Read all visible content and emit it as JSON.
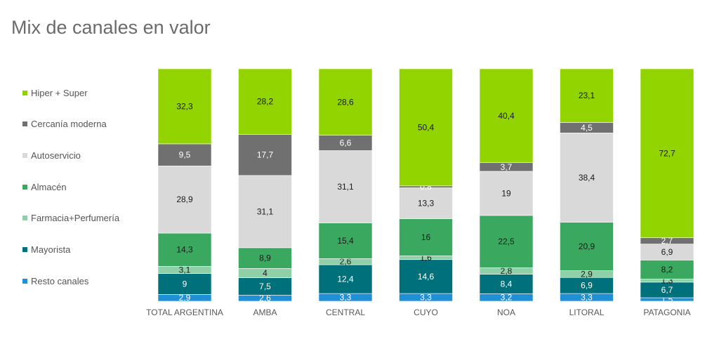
{
  "page": {
    "title": "Mix de canales en valor"
  },
  "chart_data": {
    "type": "bar",
    "stacked": true,
    "title": "Mix de canales en valor",
    "categories": [
      "TOTAL ARGENTINA",
      "AMBA",
      "CENTRAL",
      "CUYO",
      "NOA",
      "LITORAL",
      "PATAGONIA"
    ],
    "series": [
      {
        "name": "Resto canales",
        "color": "#1f8fd6",
        "values": [
          2.9,
          2.6,
          3.3,
          3.3,
          3.2,
          3.3,
          1.5
        ]
      },
      {
        "name": "Mayorista",
        "color": "#00707a",
        "values": [
          9,
          7.5,
          12.4,
          14.6,
          8.4,
          6.9,
          6.7
        ]
      },
      {
        "name": "Farmacia+Perfumería",
        "color": "#8fd0a8",
        "values": [
          3.1,
          4,
          2.6,
          1.6,
          2.8,
          2.9,
          1.3
        ]
      },
      {
        "name": "Almacén",
        "color": "#3aa85f",
        "values": [
          14.3,
          8.9,
          15.4,
          16,
          22.5,
          20.9,
          8.2
        ]
      },
      {
        "name": "Autoservicio",
        "color": "#d9d9d9",
        "values": [
          28.9,
          31.1,
          31.1,
          13.3,
          19,
          38.4,
          6.9
        ]
      },
      {
        "name": "Cercanía moderna",
        "color": "#707070",
        "values": [
          9.5,
          17.7,
          6.6,
          0.8,
          3.7,
          4.5,
          2.7
        ]
      },
      {
        "name": "Hiper + Super",
        "color": "#92d400",
        "values": [
          32.3,
          28.2,
          28.6,
          50.4,
          40.4,
          23.1,
          72.7
        ]
      }
    ],
    "labels": [
      [
        "2,9",
        "2,6",
        "3,3",
        "3,3",
        "3,2",
        "3,3",
        "1,5"
      ],
      [
        "9",
        "7,5",
        "12,4",
        "14,6",
        "8,4",
        "6,9",
        "6,7"
      ],
      [
        "3,1",
        "4",
        "2,6",
        "1,6",
        "2,8",
        "2,9",
        "1,3"
      ],
      [
        "14,3",
        "8,9",
        "15,4",
        "16",
        "22,5",
        "20,9",
        "8,2"
      ],
      [
        "28,9",
        "31,1",
        "31,1",
        "13,3",
        "19",
        "38,4",
        "6,9"
      ],
      [
        "9,5",
        "17,7",
        "6,6",
        "0,8",
        "3,7",
        "4,5",
        "2,7"
      ],
      [
        "32,3",
        "28,2",
        "28,6",
        "50,4",
        "40,4",
        "23,1",
        "72,7"
      ]
    ],
    "legend_order": [
      "Hiper + Super",
      "Cercanía moderna",
      "Autoservicio",
      "Almacén",
      "Farmacia+Perfumería",
      "Mayorista",
      "Resto canales"
    ],
    "legend_position": "left",
    "ylim": [
      0,
      100
    ],
    "grid": false
  }
}
